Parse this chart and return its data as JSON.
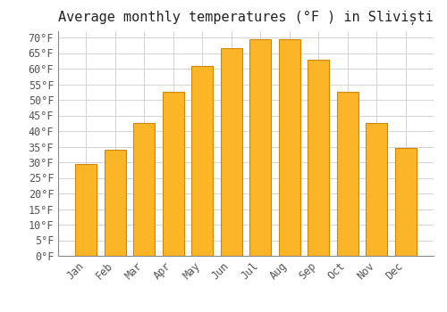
{
  "title": "Average monthly temperatures (°F ) in Sliviști",
  "months": [
    "Jan",
    "Feb",
    "Mar",
    "Apr",
    "May",
    "Jun",
    "Jul",
    "Aug",
    "Sep",
    "Oct",
    "Nov",
    "Dec"
  ],
  "values": [
    29.5,
    34.0,
    42.5,
    52.5,
    61.0,
    66.5,
    69.5,
    69.5,
    63.0,
    52.5,
    42.5,
    34.5
  ],
  "bar_color": "#FDB528",
  "bar_edge_color": "#CC8800",
  "background_color": "#FFFFFF",
  "grid_color": "#CCCCCC",
  "text_color": "#555555",
  "spine_color": "#888888",
  "ylim": [
    0,
    72
  ],
  "yticks": [
    0,
    5,
    10,
    15,
    20,
    25,
    30,
    35,
    40,
    45,
    50,
    55,
    60,
    65,
    70
  ],
  "title_fontsize": 11,
  "tick_fontsize": 8.5,
  "font_family": "monospace"
}
